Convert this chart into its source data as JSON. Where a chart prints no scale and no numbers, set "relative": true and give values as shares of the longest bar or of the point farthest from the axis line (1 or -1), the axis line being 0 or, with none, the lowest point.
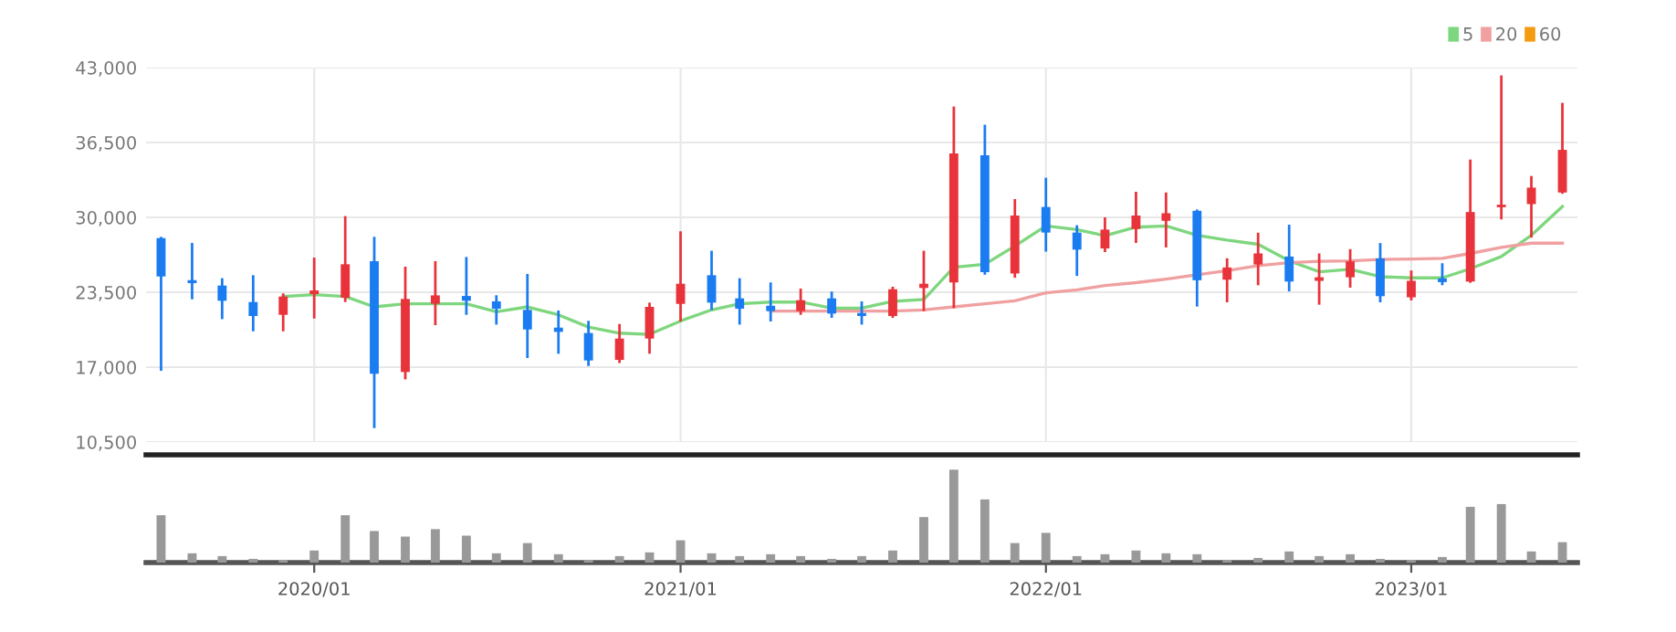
{
  "chart_data": [
    {
      "type": "candlestick",
      "x": [
        "2019-08",
        "2019-09",
        "2019-10",
        "2019-11",
        "2019-12",
        "2020-01",
        "2020-02",
        "2020-03",
        "2020-04",
        "2020-05",
        "2020-06",
        "2020-07",
        "2020-08",
        "2020-09",
        "2020-10",
        "2020-11",
        "2020-12",
        "2021-01",
        "2021-02",
        "2021-03",
        "2021-04",
        "2021-05",
        "2021-06",
        "2021-07",
        "2021-08",
        "2021-09",
        "2021-10",
        "2021-11",
        "2021-12",
        "2022-01",
        "2022-02",
        "2022-03",
        "2022-04",
        "2022-05",
        "2022-06",
        "2022-07",
        "2022-08",
        "2022-09",
        "2022-10",
        "2022-11",
        "2022-12",
        "2023-01",
        "2023-02",
        "2023-03",
        "2023-04",
        "2023-05",
        "2023-06"
      ],
      "ohlc": [
        [
          28200,
          28200,
          16790,
          24870
        ],
        [
          24550,
          27670,
          23000,
          24290
        ],
        [
          24080,
          24610,
          21280,
          22760
        ],
        [
          22650,
          24870,
          20220,
          21440
        ],
        [
          21540,
          23290,
          20220,
          23130
        ],
        [
          23340,
          26400,
          21330,
          23660
        ],
        [
          23020,
          30000,
          22760,
          25930
        ],
        [
          26190,
          28200,
          11820,
          16420
        ],
        [
          16580,
          25610,
          16050,
          22920
        ],
        [
          22500,
          26090,
          20750,
          23230
        ],
        [
          23180,
          26450,
          21650,
          22760
        ],
        [
          22710,
          23130,
          20800,
          22070
        ],
        [
          21970,
          24980,
          17900,
          20270
        ],
        [
          20430,
          21810,
          18270,
          20060
        ],
        [
          19960,
          20910,
          17210,
          17580
        ],
        [
          17630,
          20640,
          17470,
          19480
        ],
        [
          19480,
          22490,
          18270,
          22230
        ],
        [
          22490,
          28680,
          21070,
          24240
        ],
        [
          24980,
          26990,
          22070,
          22600
        ],
        [
          22970,
          24610,
          20800,
          22070
        ],
        [
          22330,
          24240,
          21070,
          21860
        ],
        [
          21860,
          23710,
          21650,
          22810
        ],
        [
          22970,
          23450,
          21390,
          21650
        ],
        [
          21700,
          22600,
          20800,
          21440
        ],
        [
          21440,
          23870,
          21390,
          23760
        ],
        [
          23870,
          26990,
          21970,
          24240
        ],
        [
          24350,
          39510,
          22230,
          35550
        ],
        [
          35390,
          37930,
          25130,
          25240
        ],
        [
          25130,
          31480,
          24870,
          30160
        ],
        [
          30900,
          33330,
          27140,
          28680
        ],
        [
          28680,
          29210,
          25030,
          27200
        ],
        [
          27300,
          29890,
          27100,
          28940
        ],
        [
          28990,
          32110,
          27890,
          30160
        ],
        [
          29700,
          32050,
          27500,
          30360
        ],
        [
          30570,
          30570,
          22370,
          24540
        ],
        [
          24590,
          26340,
          22740,
          25650
        ],
        [
          25910,
          28560,
          24220,
          26870
        ],
        [
          26600,
          29250,
          23690,
          24430
        ],
        [
          24490,
          26760,
          22530,
          24800
        ],
        [
          24800,
          27130,
          24010,
          26180
        ],
        [
          26440,
          27660,
          22740,
          23160
        ],
        [
          23060,
          25280,
          22900,
          24490
        ],
        [
          24700,
          25910,
          24220,
          24380
        ],
        [
          24430,
          34910,
          24430,
          30460
        ],
        [
          30880,
          42210,
          29930,
          31100
        ],
        [
          31150,
          33480,
          28350,
          32580
        ],
        [
          32160,
          39830,
          32160,
          35860
        ]
      ],
      "colors": [
        "#1a7cf0",
        "#1a7cf0",
        "#1a7cf0",
        "#1a7cf0",
        "#e8333a",
        "#e8333a",
        "#e8333a",
        "#1a7cf0",
        "#e8333a",
        "#e8333a",
        "#1a7cf0",
        "#1a7cf0",
        "#1a7cf0",
        "#1a7cf0",
        "#1a7cf0",
        "#e8333a",
        "#e8333a",
        "#e8333a",
        "#1a7cf0",
        "#1a7cf0",
        "#1a7cf0",
        "#e8333a",
        "#1a7cf0",
        "#1a7cf0",
        "#e8333a",
        "#e8333a",
        "#e8333a",
        "#1a7cf0",
        "#e8333a",
        "#1a7cf0",
        "#1a7cf0",
        "#e8333a",
        "#e8333a",
        "#e8333a",
        "#1a7cf0",
        "#e8333a",
        "#e8333a",
        "#1a7cf0",
        "#e8333a",
        "#e8333a",
        "#1a7cf0",
        "#e8333a",
        "#1a7cf0",
        "#e8333a",
        "#e8333a",
        "#e8333a",
        "#e8333a"
      ],
      "series": [
        {
          "name": "5",
          "type": "line",
          "color": "#7ed67e",
          "values": [
            null,
            null,
            null,
            null,
            23130,
            23290,
            23130,
            22230,
            22500,
            22500,
            22500,
            21810,
            22230,
            21540,
            20480,
            19950,
            19850,
            21010,
            21970,
            22500,
            22650,
            22650,
            22120,
            22120,
            22710,
            22870,
            25670,
            25930,
            27510,
            29260,
            28940,
            28410,
            29150,
            29250,
            28450,
            28030,
            27660,
            26230,
            25280,
            25490,
            24850,
            24750,
            24750,
            25540,
            26600,
            28450,
            30940
          ]
        },
        {
          "name": "20",
          "type": "line",
          "color": "#f0a0a0",
          "values": [
            null,
            null,
            null,
            null,
            null,
            null,
            null,
            null,
            null,
            null,
            null,
            null,
            null,
            null,
            null,
            null,
            null,
            null,
            null,
            null,
            21860,
            21860,
            21860,
            21860,
            21860,
            21970,
            22230,
            22500,
            22760,
            23450,
            23710,
            24080,
            24330,
            24640,
            25010,
            25380,
            25810,
            26070,
            26180,
            26230,
            26340,
            26390,
            26440,
            26870,
            27390,
            27760,
            27760
          ]
        },
        {
          "name": "60",
          "type": "line",
          "color": "#f39c12",
          "values": [
            null,
            null,
            null,
            null,
            null,
            null,
            null,
            null,
            null,
            null,
            null,
            null,
            null,
            null,
            null,
            null,
            null,
            null,
            null,
            null,
            null,
            null,
            null,
            null,
            null,
            null,
            null,
            null,
            null,
            null,
            null,
            null,
            null,
            null,
            null,
            null,
            null,
            null,
            null,
            null,
            null,
            null,
            null,
            null,
            null,
            null,
            null
          ]
        }
      ],
      "ylim": [
        10500,
        43000
      ],
      "yticks": [
        {
          "value": 10500,
          "label": "10,500"
        },
        {
          "value": 17000,
          "label": "17,000"
        },
        {
          "value": 23500,
          "label": "23,500"
        },
        {
          "value": 30000,
          "label": "30,000"
        },
        {
          "value": 36500,
          "label": "36,500"
        },
        {
          "value": 43000,
          "label": "43,000"
        }
      ],
      "xlim": [
        "2019-07-17",
        "2023-06-16"
      ],
      "xticks": [
        {
          "value": "2020-01",
          "label": null
        },
        {
          "value": "2021-01",
          "label": null
        },
        {
          "value": "2022-01",
          "label": null
        },
        {
          "value": "2023-01",
          "label": null
        }
      ],
      "tick_labels": "y",
      "grid": true,
      "legend": "top right"
    },
    {
      "type": "bar",
      "relative": true,
      "color": "#999999",
      "x": [
        "2019-08",
        "2019-09",
        "2019-10",
        "2019-11",
        "2019-12",
        "2020-01",
        "2020-02",
        "2020-03",
        "2020-04",
        "2020-05",
        "2020-06",
        "2020-07",
        "2020-08",
        "2020-09",
        "2020-10",
        "2020-11",
        "2020-12",
        "2021-01",
        "2021-02",
        "2021-03",
        "2021-04",
        "2021-05",
        "2021-06",
        "2021-07",
        "2021-08",
        "2021-09",
        "2021-10",
        "2021-11",
        "2021-12",
        "2022-01",
        "2022-02",
        "2022-03",
        "2022-04",
        "2022-05",
        "2022-06",
        "2022-07",
        "2022-08",
        "2022-09",
        "2022-10",
        "2022-11",
        "2022-12",
        "2023-01",
        "2023-02",
        "2023-03",
        "2023-04",
        "2023-05",
        "2023-06"
      ],
      "values": [
        0.51,
        0.1,
        0.07,
        0.04,
        0.03,
        0.13,
        0.51,
        0.34,
        0.28,
        0.36,
        0.29,
        0.1,
        0.21,
        0.09,
        0.03,
        0.07,
        0.11,
        0.24,
        0.1,
        0.07,
        0.09,
        0.07,
        0.04,
        0.07,
        0.13,
        0.49,
        1,
        0.68,
        0.21,
        0.32,
        0.07,
        0.09,
        0.13,
        0.1,
        0.09,
        0.03,
        0.05,
        0.12,
        0.07,
        0.09,
        0.04,
        0.03,
        0.06,
        0.6,
        0.63,
        0.12,
        0.22
      ],
      "xlim": [
        "2019-07-17",
        "2023-06-16"
      ],
      "xticks": [
        {
          "value": "2020-01",
          "label": "2020/01"
        },
        {
          "value": "2021-01",
          "label": "2021/01"
        },
        {
          "value": "2022-01",
          "label": "2022/01"
        },
        {
          "value": "2023-01",
          "label": "2023/01"
        }
      ],
      "tick_labels": "x"
    }
  ]
}
